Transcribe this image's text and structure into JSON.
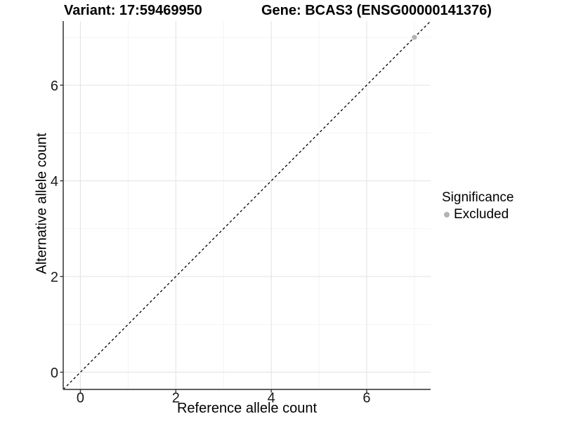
{
  "chart_data": {
    "type": "scatter",
    "title_left": "Variant: 17:59469950",
    "title_right": "Gene: BCAS3 (ENSG00000141376)",
    "xlabel": "Reference allele count",
    "ylabel": "Alternative allele count",
    "xlim": [
      -0.36,
      7.34
    ],
    "ylim": [
      -0.36,
      7.34
    ],
    "x_ticks": [
      0,
      2,
      4,
      6
    ],
    "y_ticks": [
      0,
      2,
      4,
      6
    ],
    "x_minor_ticks": [
      1,
      3,
      5,
      7
    ],
    "y_minor_ticks": [
      1,
      3,
      5,
      7
    ],
    "grid": "major+minor",
    "reference_line": {
      "type": "identity",
      "equation": "y = x",
      "style": "dashed",
      "color": "#000000"
    },
    "series": [
      {
        "name": "Excluded",
        "color": "#b3b3b3",
        "points": [
          {
            "x": 7,
            "y": 7
          }
        ]
      }
    ],
    "legend": {
      "title": "Significance",
      "position": "right",
      "items": [
        {
          "label": "Excluded",
          "color": "#b3b3b3"
        }
      ]
    }
  },
  "colors": {
    "background": "#ffffff",
    "axis_line": "#4a4a4a",
    "tick_mark": "#333333",
    "grid_major": "#e4e4e4",
    "grid_minor": "#f2f2f2",
    "tick_text": "#1a1a1a"
  }
}
